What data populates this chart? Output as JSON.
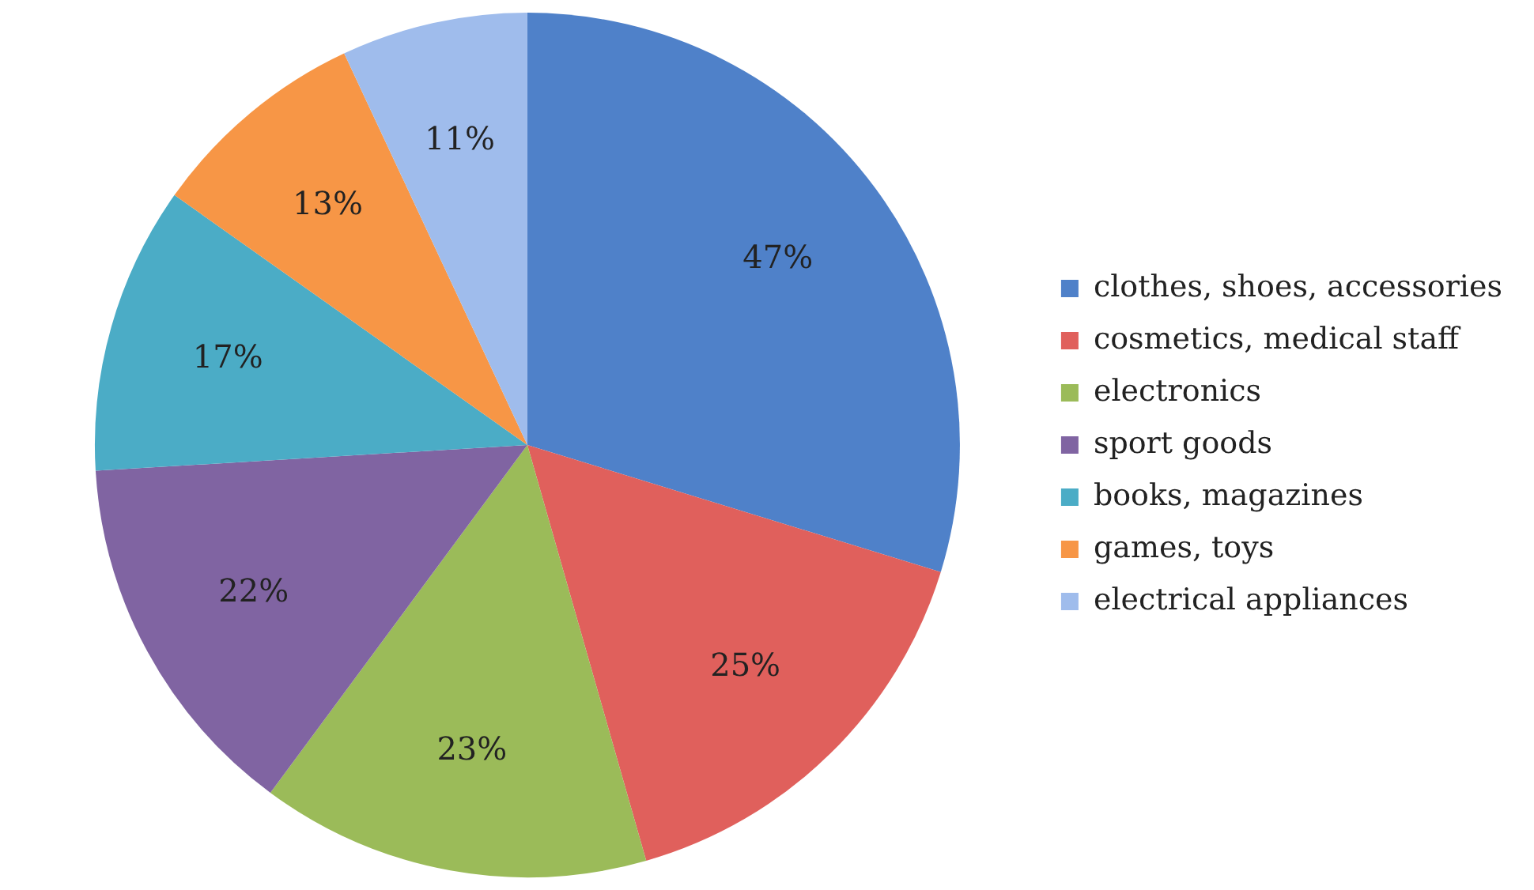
{
  "chart_data": {
    "type": "pie",
    "categories": [
      "clothes, shoes, accessories",
      "cosmetics, medical staff",
      "electronics",
      "sport goods",
      "books, magazines",
      "games, toys",
      "electrical appliances"
    ],
    "values": [
      47,
      25,
      23,
      22,
      17,
      13,
      11
    ],
    "value_labels": [
      "47%",
      "25%",
      "23%",
      "22%",
      "17%",
      "13%",
      "11%"
    ],
    "colors": [
      "#4f81c9",
      "#e0605c",
      "#9bbb59",
      "#8064a2",
      "#4bacc6",
      "#f79646",
      "#9fbcec"
    ],
    "legend": "right"
  }
}
